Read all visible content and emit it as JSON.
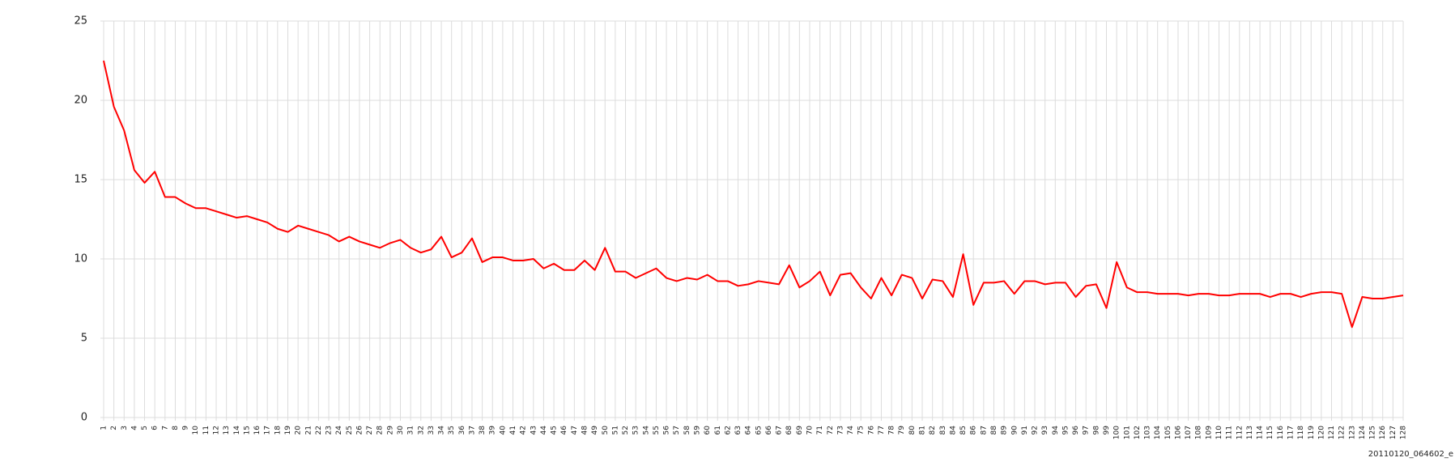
{
  "chart_data": {
    "type": "line",
    "categories": [
      1,
      2,
      3,
      4,
      5,
      6,
      7,
      8,
      9,
      10,
      11,
      12,
      13,
      14,
      15,
      16,
      17,
      18,
      19,
      20,
      21,
      22,
      23,
      24,
      25,
      26,
      27,
      28,
      29,
      30,
      31,
      32,
      33,
      34,
      35,
      36,
      37,
      38,
      39,
      40,
      41,
      42,
      43,
      44,
      45,
      46,
      47,
      48,
      49,
      50,
      51,
      52,
      53,
      54,
      55,
      56,
      57,
      58,
      59,
      60,
      61,
      62,
      63,
      64,
      65,
      66,
      67,
      68,
      69,
      70,
      71,
      72,
      73,
      74,
      75,
      76,
      77,
      78,
      79,
      80,
      81,
      82,
      83,
      84,
      85,
      86,
      87,
      88,
      89,
      90,
      91,
      92,
      93,
      94,
      95,
      96,
      97,
      98,
      99,
      100,
      101,
      102,
      103,
      104,
      105,
      106,
      107,
      108,
      109,
      110,
      111,
      112,
      113,
      114,
      115,
      116,
      117,
      118,
      119,
      120,
      121,
      122,
      123,
      124,
      125,
      126,
      127,
      128
    ],
    "values": [
      22.5,
      19.6,
      18.1,
      15.6,
      14.8,
      15.5,
      13.9,
      13.9,
      13.5,
      13.2,
      13.2,
      13.0,
      12.8,
      12.6,
      12.7,
      12.5,
      12.3,
      11.9,
      11.7,
      12.1,
      11.9,
      11.7,
      11.5,
      11.1,
      11.4,
      11.1,
      10.9,
      10.7,
      11.0,
      11.2,
      10.7,
      10.4,
      10.6,
      11.4,
      10.1,
      10.4,
      11.3,
      9.8,
      10.1,
      10.1,
      9.9,
      9.9,
      10.0,
      9.4,
      9.7,
      9.3,
      9.3,
      9.9,
      9.3,
      10.7,
      9.2,
      9.2,
      8.8,
      9.1,
      9.4,
      8.8,
      8.6,
      8.8,
      8.7,
      9.0,
      8.6,
      8.6,
      8.3,
      8.4,
      8.6,
      8.5,
      8.4,
      9.6,
      8.2,
      8.6,
      9.2,
      7.7,
      9.0,
      9.1,
      8.2,
      7.5,
      8.8,
      7.7,
      9.0,
      8.8,
      7.5,
      8.7,
      8.6,
      7.6,
      10.3,
      7.1,
      8.5,
      8.5,
      8.6,
      7.8,
      8.6,
      8.6,
      8.4,
      8.5,
      8.5,
      7.6,
      8.3,
      8.4,
      6.9,
      9.8,
      8.2,
      7.9,
      7.9,
      7.8,
      7.8,
      7.8,
      7.7,
      7.8,
      7.8,
      7.7,
      7.7,
      7.8,
      7.8,
      7.8,
      7.6,
      7.8,
      7.8,
      7.6,
      7.8,
      7.9,
      7.9,
      7.8,
      5.7,
      7.6,
      7.5,
      7.5,
      7.6,
      7.7
    ],
    "color": "#ff0000",
    "ylim": [
      0,
      25
    ],
    "yticks": [
      0,
      5,
      10,
      15,
      20,
      25
    ],
    "grid": true,
    "caption": "20110120_064602_e"
  }
}
